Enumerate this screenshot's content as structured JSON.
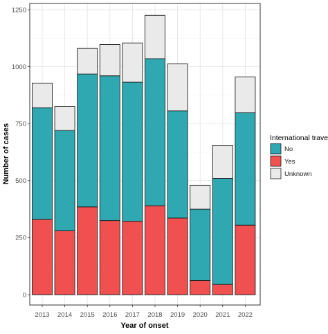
{
  "chart_data": {
    "type": "bar",
    "stacked": true,
    "xlabel": "Year of onset",
    "ylabel": "Number of cases",
    "ylim": [
      0,
      1250
    ],
    "yticks": [
      0,
      250,
      500,
      750,
      1000,
      1250
    ],
    "grid": true,
    "legend_position": "right",
    "legend_title": "International travell",
    "categories": [
      "2013",
      "2014",
      "2015",
      "2016",
      "2017",
      "2018",
      "2019",
      "2020",
      "2021",
      "2022"
    ],
    "series": [
      {
        "name": "Yes",
        "color": "#F05050",
        "values": [
          330,
          280,
          385,
          325,
          322,
          390,
          336,
          62,
          45,
          305
        ]
      },
      {
        "name": "No",
        "color": "#2FA8B2",
        "values": [
          490,
          440,
          583,
          635,
          610,
          645,
          470,
          313,
          465,
          493
        ]
      },
      {
        "name": "Unknown",
        "color": "#EAEAEA",
        "values": [
          108,
          105,
          112,
          137,
          172,
          190,
          206,
          105,
          145,
          157
        ]
      }
    ],
    "legend_order": [
      "No",
      "Yes",
      "Unknown"
    ]
  }
}
